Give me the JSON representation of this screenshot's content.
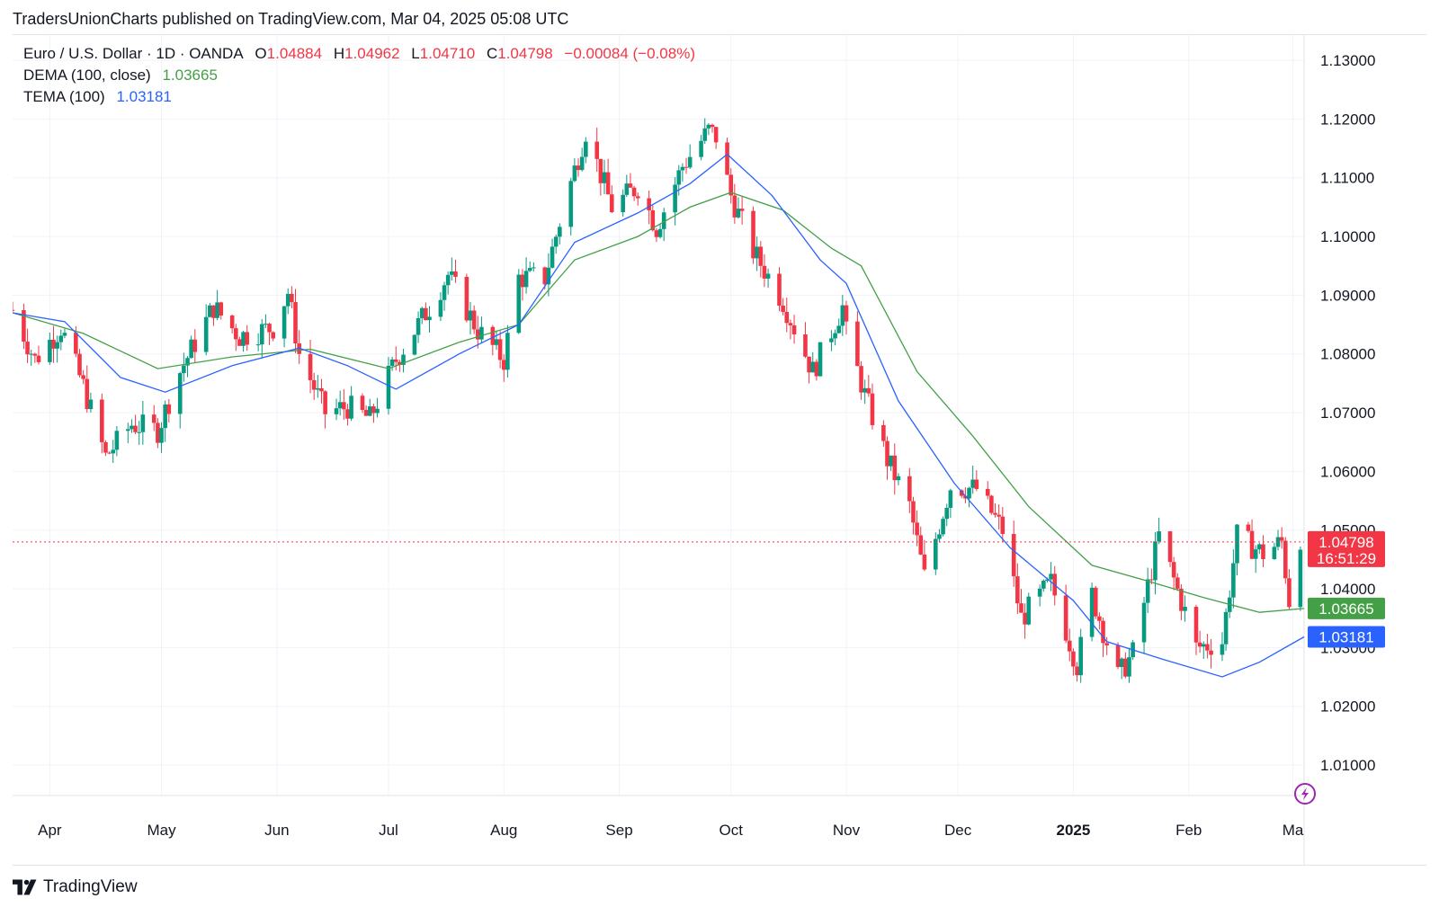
{
  "header": {
    "published": "TradersUnionCharts published on TradingView.com, Mar 04, 2025 05:08 UTC"
  },
  "legend": {
    "symbol": "Euro / U.S. Dollar · 1D · OANDA",
    "o_label": "O",
    "o_value": "1.04884",
    "h_label": "H",
    "h_value": "1.04962",
    "l_label": "L",
    "l_value": "1.04710",
    "c_label": "C",
    "c_value": "1.04798",
    "change": "−0.00084 (−0.08%)",
    "dema_label": "DEMA (100, close)",
    "dema_value": "1.03665",
    "tema_label": "TEMA (100)",
    "tema_value": "1.03181"
  },
  "price_badges": {
    "last": "1.04798",
    "countdown": "16:51:29",
    "dema": "1.03665",
    "tema": "1.03181"
  },
  "footer": {
    "brand": "TradingView",
    "logo_icon": "tradingview-logo-icon"
  },
  "colors": {
    "up": "#089981",
    "down": "#f23645",
    "dema": "#43a047",
    "tema": "#2962ff",
    "grid": "#f0f3fa",
    "axis_text": "#131722"
  },
  "chart_data": {
    "type": "candlestick",
    "title": "Euro / U.S. Dollar · 1D · OANDA",
    "y_ticks": [
      "1.13000",
      "1.12000",
      "1.11000",
      "1.10000",
      "1.09000",
      "1.08000",
      "1.07000",
      "1.06000",
      "1.05000",
      "1.04000",
      "1.03000",
      "1.02000",
      "1.01000"
    ],
    "x_ticks": [
      {
        "label": "Apr",
        "date": "2024-04-01",
        "bold": false
      },
      {
        "label": "May",
        "date": "2024-05-01",
        "bold": false
      },
      {
        "label": "Jun",
        "date": "2024-06-01",
        "bold": false
      },
      {
        "label": "Jul",
        "date": "2024-07-01",
        "bold": false
      },
      {
        "label": "Aug",
        "date": "2024-08-01",
        "bold": false
      },
      {
        "label": "Sep",
        "date": "2024-09-01",
        "bold": false
      },
      {
        "label": "Oct",
        "date": "2024-10-01",
        "bold": false
      },
      {
        "label": "Nov",
        "date": "2024-11-01",
        "bold": false
      },
      {
        "label": "Dec",
        "date": "2024-12-01",
        "bold": false
      },
      {
        "label": "2025",
        "date": "2025-01-01",
        "bold": true
      },
      {
        "label": "Feb",
        "date": "2025-02-01",
        "bold": false
      },
      {
        "label": "Ma",
        "date": "2025-03-01",
        "bold": false
      }
    ],
    "x_range": [
      "2024-03-22",
      "2025-03-04"
    ],
    "y_range": [
      1.0048,
      1.1343
    ],
    "last_close": 1.04798,
    "ohlc_keypoints": [
      [
        "2024-03-22",
        1.0875
      ],
      [
        "2024-03-28",
        1.079
      ],
      [
        "2024-04-04",
        1.0845
      ],
      [
        "2024-04-10",
        1.0745
      ],
      [
        "2024-04-16",
        1.0625
      ],
      [
        "2024-04-23",
        1.068
      ],
      [
        "2024-04-30",
        1.067
      ],
      [
        "2024-05-06",
        1.077
      ],
      [
        "2024-05-15",
        1.088
      ],
      [
        "2024-05-22",
        1.083
      ],
      [
        "2024-05-31",
        1.0845
      ],
      [
        "2024-06-04",
        1.0905
      ],
      [
        "2024-06-07",
        1.08
      ],
      [
        "2024-06-14",
        1.07
      ],
      [
        "2024-06-20",
        1.071
      ],
      [
        "2024-06-26",
        1.069
      ],
      [
        "2024-07-03",
        1.079
      ],
      [
        "2024-07-12",
        1.088
      ],
      [
        "2024-07-17",
        1.0935
      ],
      [
        "2024-07-25",
        1.084
      ],
      [
        "2024-08-01",
        1.079
      ],
      [
        "2024-08-05",
        1.093
      ],
      [
        "2024-08-12",
        1.093
      ],
      [
        "2024-08-16",
        1.1025
      ],
      [
        "2024-08-23",
        1.118
      ],
      [
        "2024-08-30",
        1.105
      ],
      [
        "2024-09-06",
        1.1085
      ],
      [
        "2024-09-11",
        1.1015
      ],
      [
        "2024-09-18",
        1.112
      ],
      [
        "2024-09-25",
        1.118
      ],
      [
        "2024-09-27",
        1.117
      ],
      [
        "2024-10-01",
        1.107
      ],
      [
        "2024-10-07",
        1.0975
      ],
      [
        "2024-10-15",
        1.089
      ],
      [
        "2024-10-23",
        1.077
      ],
      [
        "2024-10-31",
        1.088
      ],
      [
        "2024-11-01",
        1.0835
      ],
      [
        "2024-11-06",
        1.073
      ],
      [
        "2024-11-12",
        1.062
      ],
      [
        "2024-11-18",
        1.054
      ],
      [
        "2024-11-22",
        1.042
      ],
      [
        "2024-11-29",
        1.0575
      ],
      [
        "2024-12-06",
        1.057
      ],
      [
        "2024-12-13",
        1.05
      ],
      [
        "2024-12-18",
        1.035
      ],
      [
        "2024-12-26",
        1.041
      ],
      [
        "2025-01-02",
        1.027
      ],
      [
        "2025-01-06",
        1.039
      ],
      [
        "2025-01-13",
        1.025
      ],
      [
        "2025-01-17",
        1.029
      ],
      [
        "2025-01-24",
        1.049
      ],
      [
        "2025-01-31",
        1.036
      ],
      [
        "2025-02-03",
        1.03
      ],
      [
        "2025-02-10",
        1.031
      ],
      [
        "2025-02-14",
        1.049
      ],
      [
        "2025-02-21",
        1.046
      ],
      [
        "2025-02-26",
        1.048
      ],
      [
        "2025-02-28",
        1.038
      ],
      [
        "2025-03-03",
        1.0488
      ]
    ],
    "series": [
      {
        "name": "DEMA (100, close)",
        "color": "#43a047",
        "points": [
          [
            "2024-03-22",
            1.087
          ],
          [
            "2024-04-10",
            1.0835
          ],
          [
            "2024-04-30",
            1.0775
          ],
          [
            "2024-05-20",
            1.0795
          ],
          [
            "2024-06-10",
            1.0808
          ],
          [
            "2024-07-01",
            1.0775
          ],
          [
            "2024-07-20",
            1.082
          ],
          [
            "2024-08-05",
            1.085
          ],
          [
            "2024-08-20",
            1.096
          ],
          [
            "2024-09-06",
            1.1
          ],
          [
            "2024-09-20",
            1.105
          ],
          [
            "2024-10-01",
            1.1075
          ],
          [
            "2024-10-15",
            1.1045
          ],
          [
            "2024-10-28",
            1.098
          ],
          [
            "2024-11-05",
            1.095
          ],
          [
            "2024-11-20",
            1.077
          ],
          [
            "2024-12-05",
            1.066
          ],
          [
            "2024-12-20",
            1.054
          ],
          [
            "2025-01-06",
            1.044
          ],
          [
            "2025-01-20",
            1.0415
          ],
          [
            "2025-02-05",
            1.0385
          ],
          [
            "2025-02-20",
            1.036
          ],
          [
            "2025-03-04",
            1.03665
          ]
        ]
      },
      {
        "name": "TEMA (100)",
        "color": "#2962ff",
        "points": [
          [
            "2024-03-22",
            1.087
          ],
          [
            "2024-04-05",
            1.0855
          ],
          [
            "2024-04-20",
            1.076
          ],
          [
            "2024-05-02",
            1.0735
          ],
          [
            "2024-05-20",
            1.078
          ],
          [
            "2024-06-07",
            1.081
          ],
          [
            "2024-06-20",
            1.078
          ],
          [
            "2024-07-03",
            1.074
          ],
          [
            "2024-07-20",
            1.08
          ],
          [
            "2024-08-05",
            1.085
          ],
          [
            "2024-08-20",
            1.099
          ],
          [
            "2024-09-06",
            1.104
          ],
          [
            "2024-09-20",
            1.109
          ],
          [
            "2024-09-30",
            1.114
          ],
          [
            "2024-10-12",
            1.107
          ],
          [
            "2024-10-25",
            1.096
          ],
          [
            "2024-11-01",
            1.092
          ],
          [
            "2024-11-15",
            1.072
          ],
          [
            "2024-11-30",
            1.058
          ],
          [
            "2024-12-15",
            1.047
          ],
          [
            "2025-01-01",
            1.038
          ],
          [
            "2025-01-10",
            1.031
          ],
          [
            "2025-01-25",
            1.028
          ],
          [
            "2025-02-10",
            1.025
          ],
          [
            "2025-02-20",
            1.0275
          ],
          [
            "2025-03-04",
            1.03181
          ]
        ]
      }
    ]
  }
}
